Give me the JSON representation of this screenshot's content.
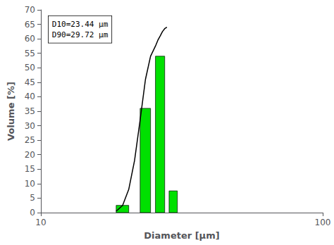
{
  "chart_data": {
    "type": "bar",
    "xlabel": "Diameter [μm]",
    "ylabel": "Volume [%]",
    "annotation": "D10=23.44 μm\nD90=29.72 μm",
    "log": "x",
    "xlim": [
      10,
      100
    ],
    "xticks": [
      10,
      100
    ],
    "ylim": [
      0,
      70
    ],
    "yticks": [
      0,
      5,
      10,
      15,
      20,
      25,
      30,
      35,
      40,
      45,
      50,
      55,
      60,
      65,
      70
    ],
    "grid": false,
    "series": [
      {
        "type": "bar",
        "color": "#00e000",
        "x": [
          19.5,
          23.5,
          26.5,
          29.5
        ],
        "widths": [
          2.0,
          2.0,
          2.0,
          2.0
        ],
        "values": [
          2.5,
          36.0,
          54.0,
          7.5
        ]
      },
      {
        "type": "line",
        "color": "#000000",
        "x": [
          18.5,
          19.5,
          20.5,
          21.5,
          22.5,
          23.5,
          24.5,
          25.5,
          26.0,
          26.5,
          27.0,
          27.5,
          28.0
        ],
        "values": [
          0.5,
          2.5,
          8.0,
          18.0,
          32.0,
          46.0,
          54.0,
          57.5,
          59.5,
          61.0,
          62.5,
          63.5,
          64.0
        ]
      }
    ]
  }
}
